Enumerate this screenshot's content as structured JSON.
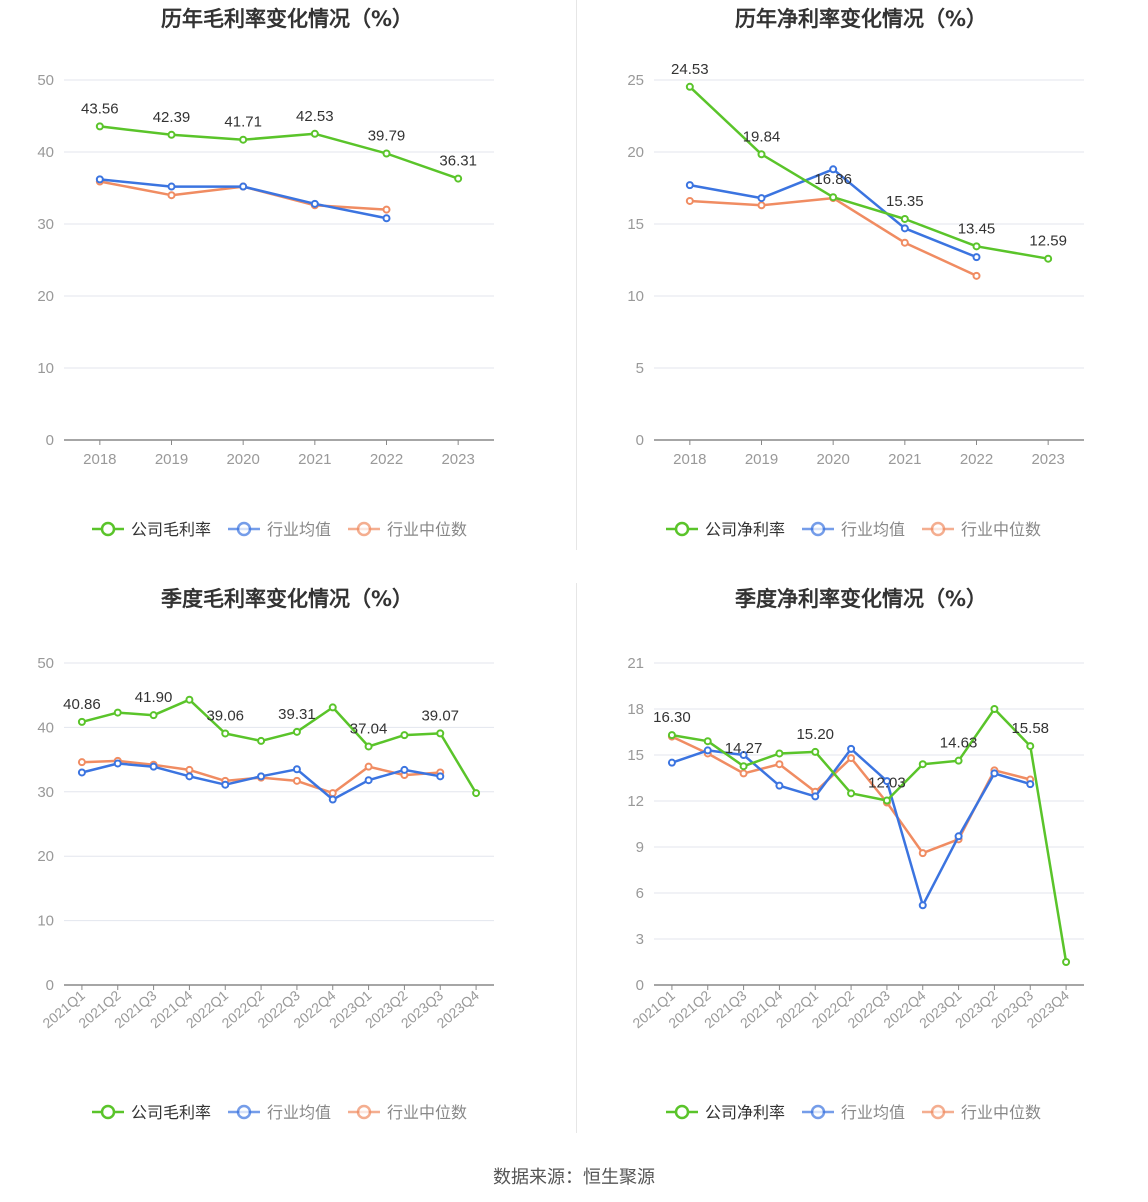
{
  "source": "数据来源：恒生聚源",
  "colors": {
    "company": "#5ac42a",
    "avg": "#3b74e0",
    "median": "#f08c62"
  },
  "chart_data": [
    {
      "type": "line",
      "title": "历年毛利率变化情况（%）",
      "categories": [
        "2018",
        "2019",
        "2020",
        "2021",
        "2022",
        "2023"
      ],
      "ylim": [
        0,
        50
      ],
      "yticks": [
        0,
        10,
        20,
        30,
        40,
        50
      ],
      "grid": true,
      "legend_position": "bottom",
      "series": [
        {
          "name": "公司毛利率",
          "key": "company",
          "values": [
            43.56,
            42.39,
            41.71,
            42.53,
            39.79,
            36.31
          ],
          "labels": [
            "43.56",
            "42.39",
            "41.71",
            "42.53",
            "39.79",
            "36.31"
          ]
        },
        {
          "name": "行业均值",
          "key": "avg",
          "values": [
            36.2,
            35.2,
            35.2,
            32.8,
            30.8,
            null
          ]
        },
        {
          "name": "行业中位数",
          "key": "median",
          "values": [
            35.9,
            34.0,
            35.2,
            32.6,
            32.0,
            null
          ]
        }
      ]
    },
    {
      "type": "line",
      "title": "历年净利率变化情况（%）",
      "categories": [
        "2018",
        "2019",
        "2020",
        "2021",
        "2022",
        "2023"
      ],
      "ylim": [
        0,
        25
      ],
      "yticks": [
        0,
        5,
        10,
        15,
        20,
        25
      ],
      "grid": true,
      "legend_position": "bottom",
      "series": [
        {
          "name": "公司净利率",
          "key": "company",
          "values": [
            24.53,
            19.84,
            16.86,
            15.35,
            13.45,
            12.59
          ],
          "labels": [
            "24.53",
            "19.84",
            "16.86",
            "15.35",
            "13.45",
            "12.59"
          ]
        },
        {
          "name": "行业均值",
          "key": "avg",
          "values": [
            17.7,
            16.8,
            18.8,
            14.7,
            12.7,
            null
          ]
        },
        {
          "name": "行业中位数",
          "key": "median",
          "values": [
            16.6,
            16.3,
            16.8,
            13.7,
            11.4,
            null
          ]
        }
      ]
    },
    {
      "type": "line",
      "title": "季度毛利率变化情况（%）",
      "categories": [
        "2021Q1",
        "2021Q2",
        "2021Q3",
        "2021Q4",
        "2022Q1",
        "2022Q2",
        "2022Q3",
        "2022Q4",
        "2023Q1",
        "2023Q2",
        "2023Q3",
        "2023Q4"
      ],
      "ylim": [
        0,
        50
      ],
      "yticks": [
        0,
        10,
        20,
        30,
        40,
        50
      ],
      "grid": true,
      "legend_position": "bottom",
      "series": [
        {
          "name": "公司毛利率",
          "key": "company",
          "values": [
            40.86,
            42.3,
            41.9,
            44.3,
            39.06,
            37.9,
            39.31,
            43.1,
            37.04,
            38.8,
            39.07,
            29.8
          ],
          "labels": [
            "40.86",
            "",
            "41.90",
            "",
            "39.06",
            "",
            "39.31",
            "",
            "37.04",
            "",
            "39.07",
            ""
          ]
        },
        {
          "name": "行业均值",
          "key": "avg",
          "values": [
            33.0,
            34.4,
            33.9,
            32.4,
            31.1,
            32.4,
            33.5,
            28.8,
            31.8,
            33.4,
            32.4,
            null
          ]
        },
        {
          "name": "行业中位数",
          "key": "median",
          "values": [
            34.6,
            34.8,
            34.2,
            33.4,
            31.7,
            32.2,
            31.7,
            29.8,
            33.9,
            32.6,
            33.0,
            null
          ]
        }
      ]
    },
    {
      "type": "line",
      "title": "季度净利率变化情况（%）",
      "categories": [
        "2021Q1",
        "2021Q2",
        "2021Q3",
        "2021Q4",
        "2022Q1",
        "2022Q2",
        "2022Q3",
        "2022Q4",
        "2023Q1",
        "2023Q2",
        "2023Q3",
        "2023Q4"
      ],
      "ylim": [
        0,
        21
      ],
      "yticks": [
        0,
        3,
        6,
        9,
        12,
        15,
        18,
        21
      ],
      "grid": true,
      "legend_position": "bottom",
      "series": [
        {
          "name": "公司净利率",
          "key": "company",
          "values": [
            16.3,
            15.9,
            14.27,
            15.1,
            15.2,
            12.5,
            12.03,
            14.4,
            14.63,
            18.0,
            15.58,
            1.5
          ],
          "labels": [
            "16.30",
            "",
            "14.27",
            "",
            "15.20",
            "",
            "12.03",
            "",
            "14.63",
            "",
            "15.58",
            ""
          ]
        },
        {
          "name": "行业均值",
          "key": "avg",
          "values": [
            14.5,
            15.3,
            15.0,
            13.0,
            12.3,
            15.4,
            13.3,
            5.2,
            9.7,
            13.8,
            13.1,
            null
          ]
        },
        {
          "name": "行业中位数",
          "key": "median",
          "values": [
            16.2,
            15.1,
            13.8,
            14.4,
            12.6,
            14.8,
            11.9,
            8.6,
            9.5,
            14.0,
            13.4,
            null
          ]
        }
      ]
    }
  ]
}
